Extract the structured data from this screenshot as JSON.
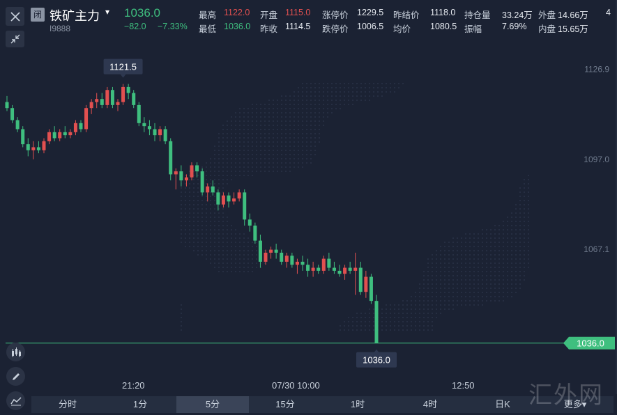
{
  "header": {
    "close_icon": "close-icon",
    "closed_badge": "闭",
    "name": "铁矿主力",
    "caret": "▾",
    "code": "I9888",
    "last_price": "1036.0",
    "change": "−82.0",
    "change_pct": "−7.33%",
    "stats": [
      {
        "label": "最高",
        "value": "1122.0",
        "color": "up"
      },
      {
        "label": "开盘",
        "value": "1115.0",
        "color": "up"
      },
      {
        "label": "涨停价",
        "value": "1229.5",
        "color": "wh"
      },
      {
        "label": "昨结价",
        "value": "1118.0",
        "color": "wh"
      },
      {
        "label": "持仓量",
        "value": "33.24万",
        "color": "wh"
      },
      {
        "label": "外盘",
        "value": "14.66万",
        "color": "wh"
      },
      {
        "label": "最低",
        "value": "1036.0",
        "color": "dn"
      },
      {
        "label": "昨收",
        "value": "1114.5",
        "color": "wh"
      },
      {
        "label": "跌停价",
        "value": "1006.5",
        "color": "wh"
      },
      {
        "label": "均价",
        "value": "1080.5",
        "color": "wh"
      },
      {
        "label": "振幅",
        "value": "7.69%",
        "color": "wh"
      },
      {
        "label": "内盘",
        "value": "15.65万",
        "color": "wh"
      }
    ],
    "extra_clip": "4"
  },
  "toolbar": {
    "expand_icon": "collapse-arrows-icon",
    "indicator_icon": "candlestick-icon",
    "draw_icon": "pencil-icon",
    "line_icon": "trend-line-icon"
  },
  "chart_data": {
    "type": "candlestick",
    "ylim": [
      1026,
      1136
    ],
    "y_ticks": [
      "1126.9",
      "1097.0",
      "1067.1"
    ],
    "y_tick_values": [
      1126.9,
      1097.0,
      1067.1
    ],
    "x_ticks": [
      "21:20",
      "07/30 10:00",
      "12:50"
    ],
    "high_marker": "1121.5",
    "low_marker": "1036.0",
    "current_price_label": "1036.0",
    "current_price": 1036.0,
    "up_color": "#e25050",
    "down_color": "#3fbf7f",
    "candles": [
      [
        1116,
        1118,
        1113,
        1114
      ],
      [
        1114,
        1115,
        1109,
        1110
      ],
      [
        1110,
        1111,
        1106,
        1107
      ],
      [
        1107,
        1108,
        1101,
        1102
      ],
      [
        1102,
        1104,
        1098,
        1100
      ],
      [
        1100,
        1103,
        1097,
        1101
      ],
      [
        1101,
        1103,
        1099,
        1100
      ],
      [
        1100,
        1104,
        1099,
        1103
      ],
      [
        1103,
        1107,
        1102,
        1106
      ],
      [
        1106,
        1108,
        1103,
        1104
      ],
      [
        1104,
        1107,
        1103,
        1106
      ],
      [
        1106,
        1108,
        1104,
        1105
      ],
      [
        1105,
        1107,
        1104,
        1106
      ],
      [
        1106,
        1110,
        1105,
        1109
      ],
      [
        1109,
        1110,
        1106,
        1107
      ],
      [
        1107,
        1115,
        1106,
        1114
      ],
      [
        1114,
        1117,
        1112,
        1116
      ],
      [
        1116,
        1119,
        1114,
        1117
      ],
      [
        1117,
        1119,
        1114,
        1115
      ],
      [
        1115,
        1121,
        1114,
        1120
      ],
      [
        1120,
        1121,
        1114,
        1115
      ],
      [
        1115,
        1117,
        1113,
        1116
      ],
      [
        1116,
        1122,
        1115,
        1121
      ],
      [
        1121,
        1122,
        1117,
        1119
      ],
      [
        1119,
        1120,
        1114,
        1115
      ],
      [
        1115,
        1116,
        1108,
        1109
      ],
      [
        1109,
        1111,
        1106,
        1108
      ],
      [
        1108,
        1110,
        1105,
        1107
      ],
      [
        1107,
        1109,
        1103,
        1105
      ],
      [
        1105,
        1108,
        1103,
        1107
      ],
      [
        1107,
        1108,
        1102,
        1103
      ],
      [
        1103,
        1104,
        1090,
        1092
      ],
      [
        1092,
        1094,
        1087,
        1093
      ],
      [
        1093,
        1095,
        1088,
        1090
      ],
      [
        1090,
        1092,
        1088,
        1091
      ],
      [
        1091,
        1096,
        1090,
        1095
      ],
      [
        1095,
        1096,
        1091,
        1093
      ],
      [
        1093,
        1094,
        1085,
        1086
      ],
      [
        1086,
        1089,
        1083,
        1088
      ],
      [
        1088,
        1090,
        1085,
        1086
      ],
      [
        1086,
        1087,
        1080,
        1082
      ],
      [
        1082,
        1086,
        1081,
        1085
      ],
      [
        1085,
        1086,
        1081,
        1083
      ],
      [
        1083,
        1086,
        1082,
        1084
      ],
      [
        1084,
        1087,
        1083,
        1086
      ],
      [
        1086,
        1087,
        1075,
        1077
      ],
      [
        1077,
        1079,
        1073,
        1075
      ],
      [
        1075,
        1076,
        1069,
        1070
      ],
      [
        1070,
        1072,
        1061,
        1063
      ],
      [
        1063,
        1067,
        1062,
        1066
      ],
      [
        1066,
        1068,
        1064,
        1067
      ],
      [
        1067,
        1069,
        1064,
        1066
      ],
      [
        1066,
        1067,
        1062,
        1063
      ],
      [
        1063,
        1066,
        1061,
        1065
      ],
      [
        1065,
        1066,
        1061,
        1062
      ],
      [
        1062,
        1064,
        1059,
        1063
      ],
      [
        1063,
        1065,
        1060,
        1062
      ],
      [
        1062,
        1064,
        1058,
        1060
      ],
      [
        1060,
        1063,
        1058,
        1061
      ],
      [
        1061,
        1062,
        1059,
        1060
      ],
      [
        1060,
        1065,
        1059,
        1064
      ],
      [
        1064,
        1066,
        1060,
        1061
      ],
      [
        1061,
        1063,
        1059,
        1060
      ],
      [
        1060,
        1062,
        1058,
        1059
      ],
      [
        1059,
        1062,
        1057,
        1061
      ],
      [
        1061,
        1063,
        1059,
        1060
      ],
      [
        1060,
        1066,
        1052,
        1061
      ],
      [
        1061,
        1063,
        1052,
        1053
      ],
      [
        1053,
        1060,
        1051,
        1058
      ],
      [
        1058,
        1059,
        1049,
        1050
      ],
      [
        1050,
        1052,
        1036,
        1036
      ]
    ]
  },
  "periods": [
    {
      "label": "分时",
      "active": false
    },
    {
      "label": "1分",
      "active": false
    },
    {
      "label": "5分",
      "active": true
    },
    {
      "label": "15分",
      "active": false
    },
    {
      "label": "1时",
      "active": false
    },
    {
      "label": "4时",
      "active": false
    },
    {
      "label": "日K",
      "active": false
    },
    {
      "label": "更多▾",
      "active": false
    }
  ],
  "watermark": "汇外网"
}
